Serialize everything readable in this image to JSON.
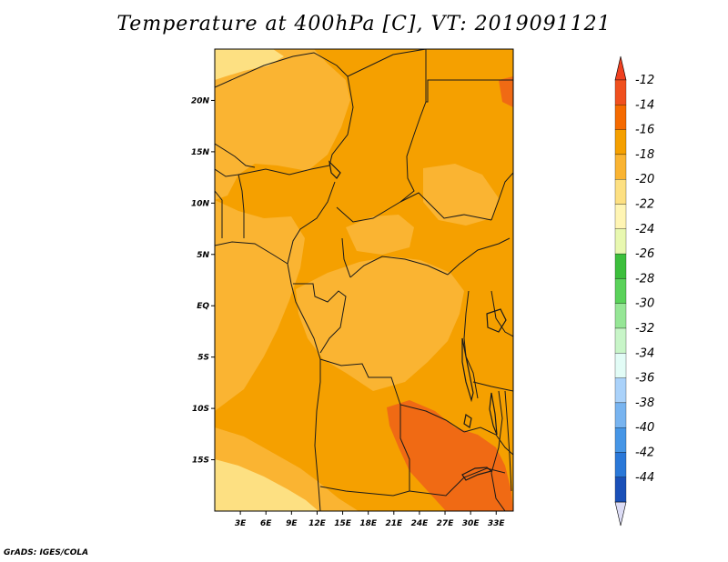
{
  "title": "Temperature at 400hPa [C], VT: 2019091121",
  "credit": "GrADS: IGES/COLA",
  "map": {
    "lon_range": [
      0,
      35
    ],
    "lat_range": [
      -20,
      25
    ],
    "lat_ticks": [
      {
        "lat": 20,
        "label": "20N"
      },
      {
        "lat": 15,
        "label": "15N"
      },
      {
        "lat": 10,
        "label": "10N"
      },
      {
        "lat": 5,
        "label": "5N"
      },
      {
        "lat": 0,
        "label": "EQ"
      },
      {
        "lat": -5,
        "label": "5S"
      },
      {
        "lat": -10,
        "label": "10S"
      },
      {
        "lat": -15,
        "label": "15S"
      }
    ],
    "lon_ticks": [
      {
        "lon": 3,
        "label": "3E"
      },
      {
        "lon": 6,
        "label": "6E"
      },
      {
        "lon": 9,
        "label": "9E"
      },
      {
        "lon": 12,
        "label": "12E"
      },
      {
        "lon": 15,
        "label": "15E"
      },
      {
        "lon": 18,
        "label": "18E"
      },
      {
        "lon": 21,
        "label": "21E"
      },
      {
        "lon": 24,
        "label": "24E"
      },
      {
        "lon": 27,
        "label": "27E"
      },
      {
        "lon": 30,
        "label": "30E"
      },
      {
        "lon": 33,
        "label": "33E"
      }
    ]
  },
  "colorbar": {
    "levels": [
      {
        "label": "-12",
        "color": "#f0501e"
      },
      {
        "label": "-14",
        "color": "#f56a00"
      },
      {
        "label": "-16",
        "color": "#f5a000"
      },
      {
        "label": "-18",
        "color": "#fab432"
      },
      {
        "label": "-20",
        "color": "#fde082"
      },
      {
        "label": "-22",
        "color": "#fff5b4"
      },
      {
        "label": "-24",
        "color": "#e8f8b0"
      },
      {
        "label": "-26",
        "color": "#3cbf3c"
      },
      {
        "label": "-28",
        "color": "#5ad25a"
      },
      {
        "label": "-30",
        "color": "#96e696"
      },
      {
        "label": "-32",
        "color": "#c8f5c8"
      },
      {
        "label": "-34",
        "color": "#e2fcf6"
      },
      {
        "label": "-36",
        "color": "#aad2fa"
      },
      {
        "label": "-38",
        "color": "#78b4f0"
      },
      {
        "label": "-40",
        "color": "#4696e6"
      },
      {
        "label": "-42",
        "color": "#2a78d8"
      },
      {
        "label": "-44",
        "color": "#1a50b8"
      }
    ],
    "top_arrow_color": "#f04020",
    "bottom_colors": [
      "#1e3ca0",
      "#0a1464"
    ],
    "bottom_arrow_color": "#dcdcf5"
  },
  "fields": {
    "colors": {
      "t_neg12": "#f06a14",
      "t_neg14": "#f5a000",
      "t_neg16": "#fab432",
      "t_neg18": "#fde082",
      "border": "#1a1a1a"
    }
  }
}
